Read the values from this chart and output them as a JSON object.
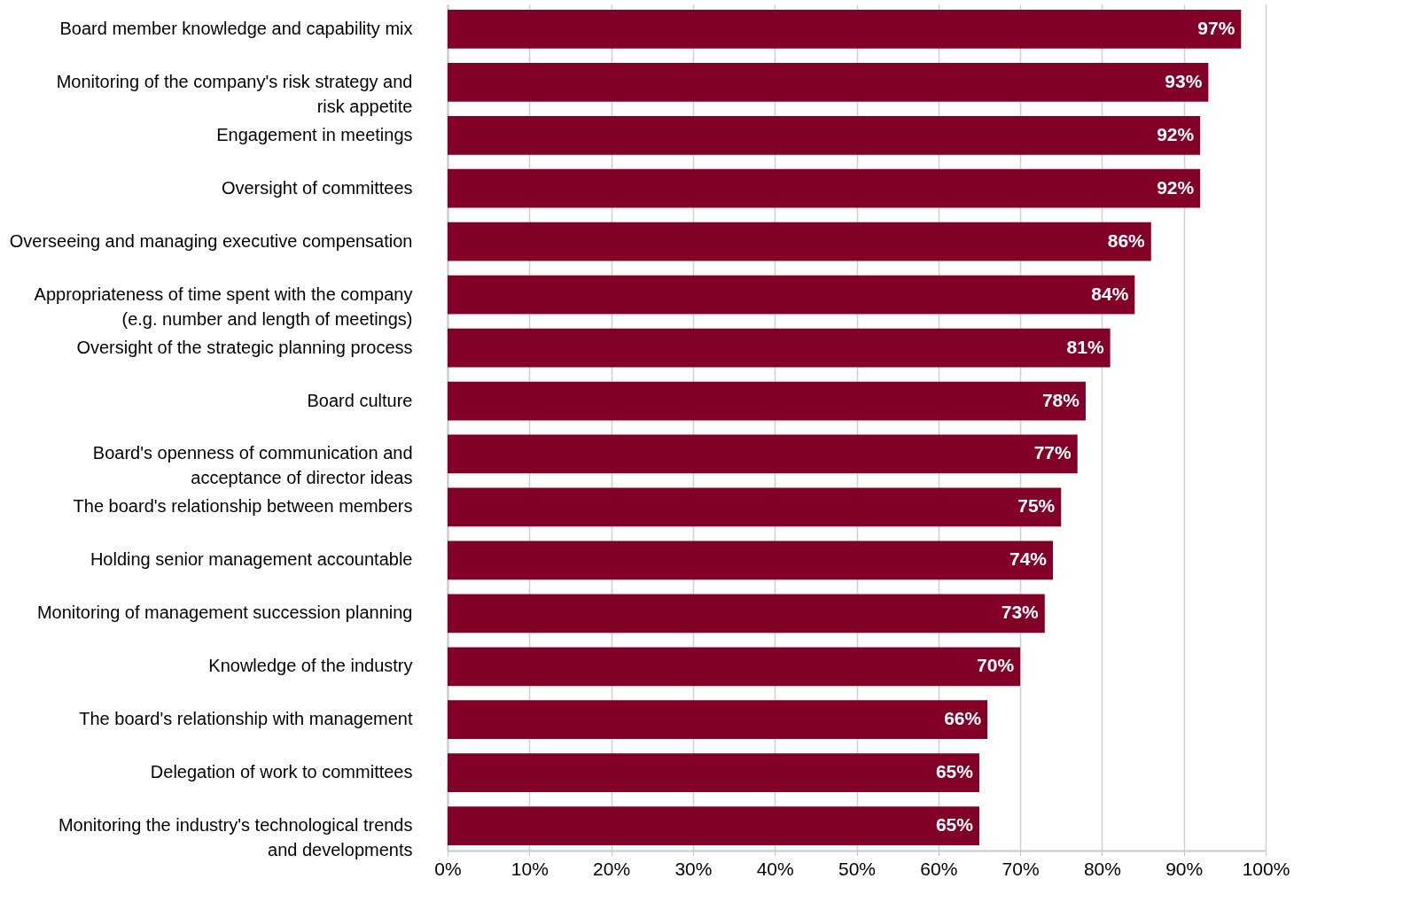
{
  "chart_data": {
    "type": "bar",
    "orientation": "horizontal",
    "categories": [
      "Board member knowledge and capability mix",
      "Monitoring of the company's risk strategy and risk appetite",
      "Engagement in meetings",
      "Oversight of committees",
      "Overseeing and managing executive compensation",
      "Appropriateness of time spent with the company (e.g. number and length of meetings)",
      "Oversight of the strategic planning process",
      "Board culture",
      "Board's openness of communication and acceptance of director ideas",
      "The board's relationship between members",
      "Holding senior management accountable",
      "Monitoring of management succession planning",
      "Knowledge of the industry",
      "The board's relationship with management",
      "Delegation of work to committees",
      "Monitoring the industry's technological trends and developments"
    ],
    "values": [
      97,
      93,
      92,
      92,
      86,
      84,
      81,
      78,
      77,
      75,
      74,
      73,
      70,
      66,
      65,
      65
    ],
    "value_labels": [
      "97%",
      "93%",
      "92%",
      "92%",
      "86%",
      "84%",
      "81%",
      "78%",
      "77%",
      "75%",
      "74%",
      "73%",
      "70%",
      "66%",
      "65%",
      "65%"
    ],
    "color": "#820028",
    "xlim": [
      0,
      100
    ],
    "xticks": [
      {
        "value": 0,
        "label": "0%"
      },
      {
        "value": 10,
        "label": "10%"
      },
      {
        "value": 20,
        "label": "20%"
      },
      {
        "value": 30,
        "label": "30%"
      },
      {
        "value": 40,
        "label": "40%"
      },
      {
        "value": 50,
        "label": "50%"
      },
      {
        "value": 60,
        "label": "60%"
      },
      {
        "value": 70,
        "label": "70%"
      },
      {
        "value": 80,
        "label": "80%"
      },
      {
        "value": 90,
        "label": "90%"
      },
      {
        "value": 100,
        "label": "100%"
      }
    ],
    "grid": "x"
  }
}
